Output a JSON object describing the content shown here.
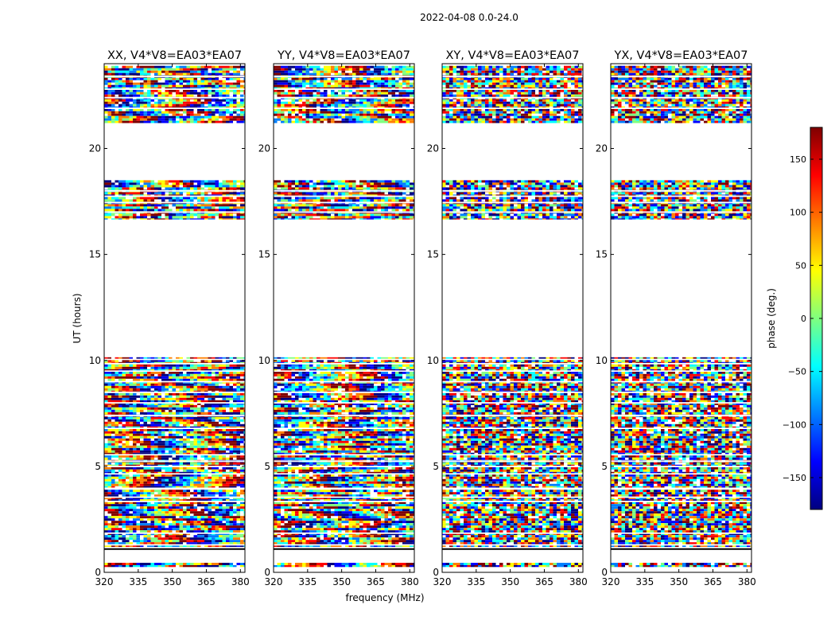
{
  "figure_title": "2022-04-08 0.0-24.0",
  "colors": {
    "frame": "#000000",
    "background": "#ffffff",
    "flag_line": "#000000"
  },
  "colormap": [
    "#00007f",
    "#0000ff",
    "#007fff",
    "#00ffff",
    "#7fff7f",
    "#ffff00",
    "#ff7f00",
    "#ff0000",
    "#7f0000"
  ],
  "chart_data": {
    "type": "heatmap",
    "description": "Waterfall of visibility phase vs frequency and UT for four polarization products",
    "xlabel": "frequency (MHz)",
    "ylabel": "UT (hours)",
    "xlim": [
      320,
      382
    ],
    "ylim": [
      0,
      24
    ],
    "xticks": [
      320,
      335,
      350,
      365,
      380
    ],
    "yticks": [
      0,
      5,
      10,
      15,
      20
    ],
    "panels": [
      {
        "title": "XX, V4*V8=EA03*EA07",
        "pattern": "fringe"
      },
      {
        "title": "YY, V4*V8=EA03*EA07",
        "pattern": "fringe"
      },
      {
        "title": "XY, V4*V8=EA03*EA07",
        "pattern": "noise"
      },
      {
        "title": "YX, V4*V8=EA03*EA07",
        "pattern": "noise"
      }
    ],
    "data_blocks_ut": [
      [
        0.25,
        0.45
      ],
      [
        1.2,
        3.9
      ],
      [
        4.0,
        10.15
      ],
      [
        16.65,
        18.5
      ],
      [
        21.2,
        23.9
      ]
    ],
    "flagged_lines_ut": [
      1.15,
      1.3,
      1.85,
      3.35,
      3.55,
      4.65,
      5.0,
      5.25,
      5.55,
      6.8,
      7.4,
      8.0,
      8.5,
      9.0,
      9.5,
      9.85,
      10.05,
      17.0,
      17.45,
      17.75,
      18.0,
      21.9,
      22.4,
      22.8,
      23.4
    ],
    "colorbar": {
      "label": "phase (deg.)",
      "range": [
        -180,
        180
      ],
      "ticks": [
        -150,
        -100,
        -50,
        0,
        50,
        100,
        150
      ],
      "tick_labels": [
        "−150",
        "−100",
        "−50",
        "0",
        "50",
        "100",
        "150"
      ]
    }
  }
}
